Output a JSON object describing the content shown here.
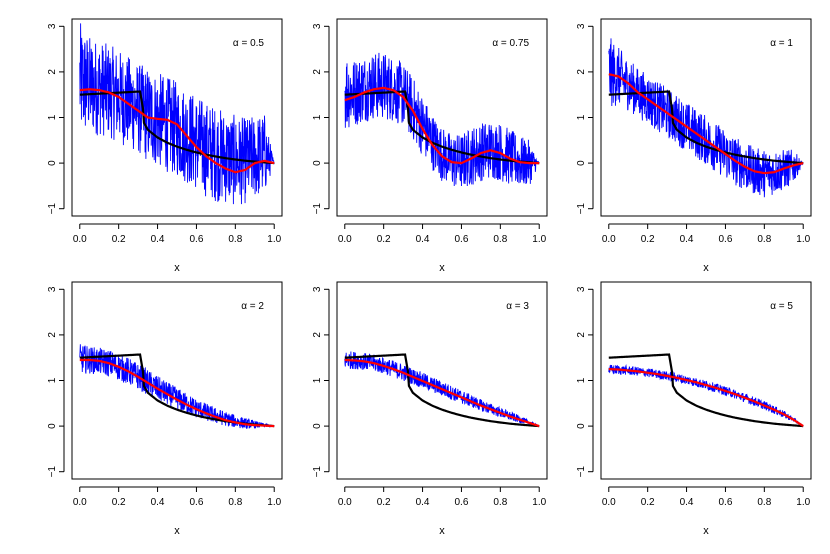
{
  "colors": {
    "noisy": "#0000ff",
    "smooth": "#ff0000",
    "truth": "#000000"
  },
  "chart_data": [
    {
      "type": "line",
      "title": "α = 0.5",
      "xlabel": "x",
      "ylabel": "",
      "xlim": [
        0,
        1
      ],
      "ylim": [
        -1,
        3
      ],
      "xticks": [
        "0.0",
        "0.2",
        "0.4",
        "0.6",
        "0.8",
        "1.0"
      ],
      "yticks": [
        "−1",
        "0",
        "1",
        "2",
        "3"
      ],
      "x": [
        0,
        0.05,
        0.1,
        0.15,
        0.2,
        0.25,
        0.3,
        0.35,
        0.4,
        0.45,
        0.5,
        0.55,
        0.6,
        0.65,
        0.7,
        0.75,
        0.8,
        0.85,
        0.9,
        0.95,
        1.0
      ],
      "series": [
        {
          "values": [
            1.6,
            1.62,
            1.6,
            1.55,
            1.45,
            1.3,
            1.15,
            1.0,
            0.97,
            0.95,
            0.85,
            0.6,
            0.35,
            0.15,
            0.0,
            -0.12,
            -0.2,
            -0.15,
            0.0,
            0.05,
            0.0
          ]
        },
        {
          "values": [
            1.5,
            1.5,
            1.52,
            1.53,
            1.55,
            1.56,
            1.57,
            0.95,
            0.72,
            0.58,
            0.48,
            0.4,
            0.33,
            0.27,
            0.22,
            0.17,
            0.13,
            0.09,
            0.06,
            0.03,
            0.0
          ]
        }
      ],
      "noise_band": {
        "lower": [
          0.5,
          0.6,
          0.6,
          0.55,
          0.45,
          0.3,
          0.2,
          0.0,
          -0.1,
          -0.2,
          -0.3,
          -0.45,
          -0.6,
          -0.75,
          -0.85,
          -0.9,
          -0.95,
          -0.9,
          -0.8,
          -0.7,
          0.0
        ],
        "upper": [
          3.1,
          2.8,
          2.7,
          2.6,
          2.5,
          2.35,
          2.2,
          2.1,
          2.0,
          1.9,
          1.8,
          1.65,
          1.5,
          1.35,
          1.25,
          1.15,
          1.05,
          1.0,
          1.05,
          1.1,
          0.0
        ]
      }
    },
    {
      "type": "line",
      "title": "α = 0.75",
      "xlabel": "x",
      "ylabel": "",
      "xlim": [
        0,
        1
      ],
      "ylim": [
        -1,
        3
      ],
      "xticks": [
        "0.0",
        "0.2",
        "0.4",
        "0.6",
        "0.8",
        "1.0"
      ],
      "yticks": [
        "−1",
        "0",
        "1",
        "2",
        "3"
      ],
      "x": [
        0,
        0.05,
        0.1,
        0.15,
        0.2,
        0.25,
        0.3,
        0.35,
        0.4,
        0.45,
        0.5,
        0.55,
        0.6,
        0.65,
        0.7,
        0.75,
        0.8,
        0.85,
        0.9,
        0.95,
        1.0
      ],
      "series": [
        {
          "values": [
            1.38,
            1.45,
            1.55,
            1.62,
            1.65,
            1.6,
            1.45,
            1.15,
            0.75,
            0.4,
            0.15,
            0.02,
            0.0,
            0.1,
            0.22,
            0.28,
            0.22,
            0.1,
            0.02,
            0.0,
            0.0
          ]
        },
        {
          "values": [
            1.5,
            1.5,
            1.52,
            1.53,
            1.55,
            1.56,
            1.57,
            0.95,
            0.72,
            0.58,
            0.48,
            0.4,
            0.33,
            0.27,
            0.22,
            0.17,
            0.13,
            0.09,
            0.06,
            0.03,
            0.0
          ]
        }
      ],
      "noise_band": {
        "lower": [
          0.7,
          0.8,
          0.9,
          0.95,
          0.95,
          0.9,
          0.8,
          0.5,
          0.15,
          -0.15,
          -0.4,
          -0.55,
          -0.6,
          -0.5,
          -0.4,
          -0.35,
          -0.4,
          -0.5,
          -0.55,
          -0.5,
          0.0
        ],
        "upper": [
          2.5,
          2.3,
          2.4,
          2.45,
          2.45,
          2.35,
          2.2,
          1.9,
          1.5,
          1.1,
          0.8,
          0.65,
          0.65,
          0.8,
          0.9,
          0.95,
          0.9,
          0.75,
          0.6,
          0.5,
          0.0
        ]
      }
    },
    {
      "type": "line",
      "title": "α = 1",
      "xlabel": "x",
      "ylabel": "",
      "xlim": [
        0,
        1
      ],
      "ylim": [
        -1,
        3
      ],
      "xticks": [
        "0.0",
        "0.2",
        "0.4",
        "0.6",
        "0.8",
        "1.0"
      ],
      "yticks": [
        "−1",
        "0",
        "1",
        "2",
        "3"
      ],
      "x": [
        0,
        0.05,
        0.1,
        0.15,
        0.2,
        0.25,
        0.3,
        0.35,
        0.4,
        0.45,
        0.5,
        0.55,
        0.6,
        0.65,
        0.7,
        0.75,
        0.8,
        0.85,
        0.9,
        0.95,
        1.0
      ],
      "series": [
        {
          "values": [
            1.95,
            1.9,
            1.75,
            1.55,
            1.4,
            1.25,
            1.1,
            0.95,
            0.8,
            0.65,
            0.5,
            0.35,
            0.2,
            0.05,
            -0.08,
            -0.18,
            -0.22,
            -0.2,
            -0.12,
            -0.05,
            0.0
          ]
        },
        {
          "values": [
            1.5,
            1.5,
            1.52,
            1.53,
            1.55,
            1.56,
            1.57,
            0.95,
            0.72,
            0.58,
            0.48,
            0.4,
            0.33,
            0.27,
            0.22,
            0.17,
            0.13,
            0.09,
            0.06,
            0.03,
            0.0
          ]
        }
      ],
      "noise_band": {
        "lower": [
          1.2,
          1.25,
          1.15,
          1.0,
          0.85,
          0.7,
          0.55,
          0.4,
          0.25,
          0.1,
          -0.05,
          -0.2,
          -0.35,
          -0.5,
          -0.6,
          -0.7,
          -0.75,
          -0.7,
          -0.6,
          -0.45,
          0.0
        ],
        "upper": [
          2.8,
          2.55,
          2.3,
          2.1,
          1.95,
          1.8,
          1.65,
          1.5,
          1.35,
          1.2,
          1.05,
          0.9,
          0.75,
          0.6,
          0.45,
          0.35,
          0.3,
          0.3,
          0.3,
          0.3,
          0.0
        ]
      }
    },
    {
      "type": "line",
      "title": "α = 2",
      "xlabel": "x",
      "ylabel": "",
      "xlim": [
        0,
        1
      ],
      "ylim": [
        -1,
        3
      ],
      "xticks": [
        "0.0",
        "0.2",
        "0.4",
        "0.6",
        "0.8",
        "1.0"
      ],
      "yticks": [
        "−1",
        "0",
        "1",
        "2",
        "3"
      ],
      "x": [
        0,
        0.05,
        0.1,
        0.15,
        0.2,
        0.25,
        0.3,
        0.35,
        0.4,
        0.45,
        0.5,
        0.55,
        0.6,
        0.65,
        0.7,
        0.75,
        0.8,
        0.85,
        0.9,
        0.95,
        1.0
      ],
      "series": [
        {
          "values": [
            1.45,
            1.45,
            1.43,
            1.38,
            1.3,
            1.2,
            1.08,
            0.95,
            0.82,
            0.7,
            0.58,
            0.47,
            0.37,
            0.28,
            0.2,
            0.13,
            0.08,
            0.04,
            0.02,
            0.01,
            0.0
          ]
        },
        {
          "values": [
            1.5,
            1.5,
            1.52,
            1.53,
            1.55,
            1.56,
            1.57,
            0.95,
            0.72,
            0.58,
            0.48,
            0.4,
            0.33,
            0.27,
            0.22,
            0.17,
            0.13,
            0.09,
            0.06,
            0.03,
            0.0
          ]
        }
      ],
      "noise_band": {
        "lower": [
          1.15,
          1.15,
          1.13,
          1.08,
          1.0,
          0.9,
          0.8,
          0.68,
          0.56,
          0.45,
          0.35,
          0.26,
          0.18,
          0.11,
          0.05,
          0.0,
          -0.04,
          -0.06,
          -0.05,
          -0.03,
          0.0
        ],
        "upper": [
          1.8,
          1.75,
          1.72,
          1.68,
          1.6,
          1.5,
          1.38,
          1.24,
          1.1,
          0.97,
          0.85,
          0.72,
          0.6,
          0.5,
          0.4,
          0.32,
          0.25,
          0.18,
          0.12,
          0.06,
          0.0
        ]
      }
    },
    {
      "type": "line",
      "title": "α = 3",
      "xlabel": "x",
      "ylabel": "",
      "xlim": [
        0,
        1
      ],
      "ylim": [
        -1,
        3
      ],
      "xticks": [
        "0.0",
        "0.2",
        "0.4",
        "0.6",
        "0.8",
        "1.0"
      ],
      "yticks": [
        "−1",
        "0",
        "1",
        "2",
        "3"
      ],
      "x": [
        0,
        0.05,
        0.1,
        0.15,
        0.2,
        0.25,
        0.3,
        0.35,
        0.4,
        0.45,
        0.5,
        0.55,
        0.6,
        0.65,
        0.7,
        0.75,
        0.8,
        0.85,
        0.9,
        0.95,
        1.0
      ],
      "series": [
        {
          "values": [
            1.45,
            1.44,
            1.42,
            1.38,
            1.32,
            1.25,
            1.17,
            1.08,
            0.99,
            0.9,
            0.81,
            0.72,
            0.63,
            0.54,
            0.45,
            0.37,
            0.29,
            0.21,
            0.14,
            0.07,
            0.0
          ]
        },
        {
          "values": [
            1.5,
            1.5,
            1.52,
            1.53,
            1.55,
            1.56,
            1.57,
            0.95,
            0.72,
            0.58,
            0.48,
            0.4,
            0.33,
            0.27,
            0.22,
            0.17,
            0.13,
            0.09,
            0.06,
            0.03,
            0.0
          ]
        }
      ],
      "noise_band": {
        "lower": [
          1.25,
          1.25,
          1.23,
          1.19,
          1.14,
          1.07,
          0.99,
          0.91,
          0.82,
          0.74,
          0.65,
          0.57,
          0.49,
          0.41,
          0.33,
          0.26,
          0.19,
          0.12,
          0.07,
          0.03,
          0.0
        ],
        "upper": [
          1.65,
          1.64,
          1.61,
          1.57,
          1.51,
          1.44,
          1.36,
          1.27,
          1.18,
          1.08,
          0.99,
          0.89,
          0.79,
          0.69,
          0.59,
          0.5,
          0.41,
          0.32,
          0.23,
          0.12,
          0.0
        ]
      }
    },
    {
      "type": "line",
      "title": "α = 5",
      "xlabel": "x",
      "ylabel": "",
      "xlim": [
        0,
        1
      ],
      "ylim": [
        -1,
        3
      ],
      "xticks": [
        "0.0",
        "0.2",
        "0.4",
        "0.6",
        "0.8",
        "1.0"
      ],
      "yticks": [
        "−1",
        "0",
        "1",
        "2",
        "3"
      ],
      "x": [
        0,
        0.05,
        0.1,
        0.15,
        0.2,
        0.25,
        0.3,
        0.35,
        0.4,
        0.45,
        0.5,
        0.55,
        0.6,
        0.65,
        0.7,
        0.75,
        0.8,
        0.85,
        0.9,
        0.95,
        1.0
      ],
      "series": [
        {
          "values": [
            1.25,
            1.24,
            1.22,
            1.2,
            1.17,
            1.14,
            1.1,
            1.06,
            1.01,
            0.96,
            0.9,
            0.84,
            0.77,
            0.7,
            0.62,
            0.54,
            0.45,
            0.36,
            0.26,
            0.14,
            0.0
          ]
        },
        {
          "values": [
            1.5,
            1.5,
            1.52,
            1.53,
            1.55,
            1.56,
            1.57,
            0.95,
            0.72,
            0.58,
            0.48,
            0.4,
            0.33,
            0.27,
            0.22,
            0.17,
            0.13,
            0.09,
            0.06,
            0.03,
            0.0
          ]
        }
      ],
      "noise_band": {
        "lower": [
          1.13,
          1.13,
          1.12,
          1.1,
          1.07,
          1.04,
          1.0,
          0.96,
          0.91,
          0.86,
          0.8,
          0.74,
          0.67,
          0.6,
          0.52,
          0.44,
          0.36,
          0.27,
          0.18,
          0.09,
          0.0
        ],
        "upper": [
          1.35,
          1.34,
          1.32,
          1.3,
          1.27,
          1.24,
          1.2,
          1.16,
          1.11,
          1.06,
          1.0,
          0.94,
          0.87,
          0.8,
          0.72,
          0.64,
          0.55,
          0.45,
          0.34,
          0.2,
          0.0
        ]
      }
    }
  ]
}
